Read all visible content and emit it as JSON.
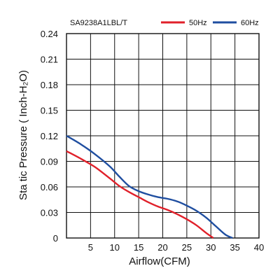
{
  "chart_data": {
    "type": "line",
    "title": "SA9238A1LBL/T",
    "xlabel": "Airflow(CFM)",
    "ylabel": "Sta tic Pressure ( Inch-H₂O)",
    "xlim": [
      0,
      40
    ],
    "ylim": [
      0,
      0.24
    ],
    "x_ticks": [
      5,
      10,
      15,
      20,
      25,
      30,
      35,
      40
    ],
    "y_ticks": [
      "0",
      "0.03",
      "0.06",
      "0.09",
      "0.12",
      "0.15",
      "0.18",
      "0.21",
      "0.24"
    ],
    "grid": true,
    "legend_position": "top-right",
    "series": [
      {
        "name": "50Hz",
        "color": "#e0202a",
        "points": [
          [
            0,
            0.102
          ],
          [
            3,
            0.093
          ],
          [
            6,
            0.083
          ],
          [
            9,
            0.07
          ],
          [
            11,
            0.061
          ],
          [
            13,
            0.054
          ],
          [
            15,
            0.048
          ],
          [
            17,
            0.042
          ],
          [
            19,
            0.037
          ],
          [
            21,
            0.033
          ],
          [
            23,
            0.028
          ],
          [
            25,
            0.022
          ],
          [
            27,
            0.015
          ],
          [
            29,
            0.006
          ],
          [
            30.5,
            0.0
          ]
        ]
      },
      {
        "name": "60Hz",
        "color": "#1f4ea0",
        "points": [
          [
            0,
            0.12
          ],
          [
            3,
            0.11
          ],
          [
            6,
            0.098
          ],
          [
            9,
            0.084
          ],
          [
            11,
            0.072
          ],
          [
            13,
            0.061
          ],
          [
            15,
            0.055
          ],
          [
            17,
            0.051
          ],
          [
            19,
            0.048
          ],
          [
            21,
            0.046
          ],
          [
            23,
            0.043
          ],
          [
            25,
            0.038
          ],
          [
            27,
            0.032
          ],
          [
            29,
            0.024
          ],
          [
            31,
            0.014
          ],
          [
            33,
            0.004
          ],
          [
            34.5,
            0.0
          ]
        ]
      }
    ]
  }
}
